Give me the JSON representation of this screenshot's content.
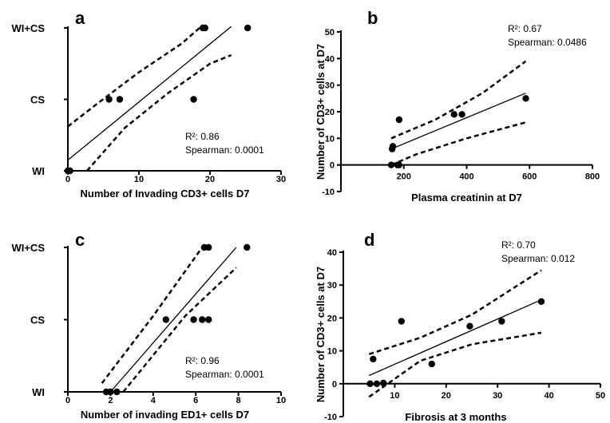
{
  "chart_data": [
    {
      "id": "a",
      "type": "scatter",
      "panel_label": "a",
      "xlabel": "Number of Invading CD3+ cells D7",
      "ylabel": "",
      "xlim": [
        0,
        30
      ],
      "xticks": [
        "0",
        "10",
        "20",
        "30"
      ],
      "ylim": [
        0,
        2
      ],
      "ycategories": [
        "WI",
        "CS",
        "WI+CS"
      ],
      "points": [
        [
          0,
          0
        ],
        [
          0.3,
          0
        ],
        [
          5.8,
          1
        ],
        [
          7.3,
          1
        ],
        [
          17.7,
          1
        ],
        [
          19,
          2
        ],
        [
          19.3,
          2
        ],
        [
          25.3,
          2
        ]
      ],
      "fit_line": [
        [
          0,
          0.15
        ],
        [
          23,
          2.02
        ]
      ],
      "ci_upper": [
        [
          0,
          0.62
        ],
        [
          4,
          0.93
        ],
        [
          10,
          1.38
        ],
        [
          16,
          1.78
        ],
        [
          19,
          2.04
        ]
      ],
      "ci_lower": [
        [
          2.7,
          0
        ],
        [
          8,
          0.6
        ],
        [
          14,
          1.08
        ],
        [
          20,
          1.5
        ],
        [
          23,
          1.62
        ]
      ],
      "annotations": [
        "R²: 0.86",
        "Spearman: 0.0001"
      ]
    },
    {
      "id": "b",
      "type": "scatter",
      "panel_label": "b",
      "xlabel": "Plasma creatinin at D7",
      "ylabel": "Number of CD3+ cells at D7",
      "xlim": [
        0,
        800
      ],
      "xticks": [
        "200",
        "400",
        "600",
        "800"
      ],
      "ylim": [
        -10,
        50
      ],
      "yticks": [
        "-10",
        "0",
        "10",
        "20",
        "30",
        "40",
        "50"
      ],
      "points": [
        [
          160,
          0
        ],
        [
          163,
          6
        ],
        [
          165,
          7
        ],
        [
          180,
          0
        ],
        [
          185,
          17
        ],
        [
          185,
          0
        ],
        [
          360,
          19
        ],
        [
          385,
          19
        ],
        [
          588,
          25
        ]
      ],
      "fit_line": [
        [
          160,
          6
        ],
        [
          588,
          27
        ]
      ],
      "ci_upper": [
        [
          160,
          10
        ],
        [
          300,
          17
        ],
        [
          450,
          27
        ],
        [
          588,
          39
        ]
      ],
      "ci_lower": [
        [
          160,
          0
        ],
        [
          240,
          4
        ],
        [
          400,
          10
        ],
        [
          588,
          16
        ]
      ],
      "annotations": [
        "R²: 0.67",
        "Spearman: 0.0486"
      ]
    },
    {
      "id": "c",
      "type": "scatter",
      "panel_label": "c",
      "xlabel": "Number of invading ED1+ cells D7",
      "ylabel": "",
      "xlim": [
        0,
        10
      ],
      "xticks": [
        "0",
        "2",
        "4",
        "6",
        "8",
        "10"
      ],
      "ylim": [
        0,
        2
      ],
      "ycategories": [
        "WI",
        "CS",
        "WI+CS"
      ],
      "points": [
        [
          1.8,
          0
        ],
        [
          2.0,
          0
        ],
        [
          2.3,
          0
        ],
        [
          4.6,
          1
        ],
        [
          5.9,
          1
        ],
        [
          6.3,
          1
        ],
        [
          6.6,
          1
        ],
        [
          6.4,
          2
        ],
        [
          6.6,
          2
        ],
        [
          8.4,
          2
        ]
      ],
      "fit_line": [
        [
          2.0,
          0
        ],
        [
          7.9,
          2.0
        ]
      ],
      "ci_upper": [
        [
          1.6,
          0.12
        ],
        [
          4,
          1.05
        ],
        [
          6.3,
          2.0
        ]
      ],
      "ci_lower": [
        [
          2.6,
          0
        ],
        [
          5.5,
          1.05
        ],
        [
          7.9,
          1.72
        ]
      ],
      "annotations": [
        "R²: 0.96",
        "Spearman: 0.0001"
      ]
    },
    {
      "id": "d",
      "type": "scatter",
      "panel_label": "d",
      "xlabel": "Fibrosis at 3 months",
      "ylabel": "Number of CD3+ cells at D7",
      "xlim": [
        0,
        50
      ],
      "xticks": [
        "10",
        "20",
        "30",
        "40",
        "50"
      ],
      "ylim": [
        -10,
        40
      ],
      "yticks": [
        "-10",
        "0",
        "10",
        "20",
        "30",
        "40"
      ],
      "points": [
        [
          5.2,
          0
        ],
        [
          5.8,
          7.5
        ],
        [
          6.5,
          0
        ],
        [
          7.8,
          0.2
        ],
        [
          11.3,
          19
        ],
        [
          17.2,
          6
        ],
        [
          24.6,
          17.5
        ],
        [
          30.8,
          19
        ],
        [
          38.5,
          25
        ]
      ],
      "fit_line": [
        [
          5,
          2.5
        ],
        [
          38.5,
          25.5
        ]
      ],
      "ci_upper": [
        [
          5,
          9
        ],
        [
          15,
          14
        ],
        [
          25,
          21
        ],
        [
          38.5,
          34.5
        ]
      ],
      "ci_lower": [
        [
          5,
          -4
        ],
        [
          15,
          7
        ],
        [
          25,
          12
        ],
        [
          38.5,
          15.5
        ]
      ],
      "annotations": [
        "R²: 0.70",
        "Spearman: 0.012"
      ]
    }
  ]
}
